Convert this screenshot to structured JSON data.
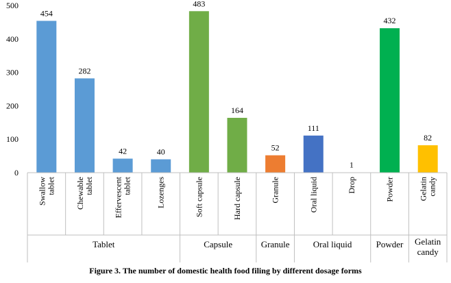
{
  "chart_data": {
    "type": "bar",
    "title": "Figure 3. The number of domestic health food filing by different dosage forms",
    "ylim": [
      0,
      500
    ],
    "yticks": [
      0,
      100,
      200,
      300,
      400,
      500
    ],
    "grid": false,
    "categories": [
      {
        "label": "Swallow tablet",
        "lines": [
          "Swallow",
          "tablet"
        ],
        "value": 454,
        "group": "Tablet",
        "color": "#5b9bd5"
      },
      {
        "label": "Chewable tablet",
        "lines": [
          "Chewable",
          "tablet"
        ],
        "value": 282,
        "group": "Tablet",
        "color": "#5b9bd5"
      },
      {
        "label": "Effervescent tablet",
        "lines": [
          "Effervescent",
          "tablet"
        ],
        "value": 42,
        "group": "Tablet",
        "color": "#5b9bd5"
      },
      {
        "label": "Lozenges",
        "lines": [
          "Lozenges"
        ],
        "value": 40,
        "group": "Tablet",
        "color": "#5b9bd5"
      },
      {
        "label": "Soft capsule",
        "lines": [
          "Soft capsule"
        ],
        "value": 483,
        "group": "Capsule",
        "color": "#70ad47"
      },
      {
        "label": "Hard capsule",
        "lines": [
          "Hard capsule"
        ],
        "value": 164,
        "group": "Capsule",
        "color": "#70ad47"
      },
      {
        "label": "Granule",
        "lines": [
          "Granule"
        ],
        "value": 52,
        "group": "Granule",
        "color": "#ed7d31"
      },
      {
        "label": "Oral liquid",
        "lines": [
          "Oral liquid"
        ],
        "value": 111,
        "group": "Oral liquid",
        "color": "#4472c4"
      },
      {
        "label": "Drop",
        "lines": [
          "Drop"
        ],
        "value": 1,
        "group": "Oral liquid",
        "color": "#4472c4"
      },
      {
        "label": "Powder",
        "lines": [
          "Powder"
        ],
        "value": 432,
        "group": "Powder",
        "color": "#00b050"
      },
      {
        "label": "Gelatin candy",
        "lines": [
          "Gelatin",
          "candy"
        ],
        "value": 82,
        "group": "Gelatin candy",
        "color": "#ffc000"
      }
    ],
    "groups": [
      {
        "label": "Tablet",
        "lines": [
          "Tablet"
        ]
      },
      {
        "label": "Capsule",
        "lines": [
          "Capsule"
        ]
      },
      {
        "label": "Granule",
        "lines": [
          "Granule"
        ]
      },
      {
        "label": "Oral liquid",
        "lines": [
          "Oral liquid"
        ]
      },
      {
        "label": "Powder",
        "lines": [
          "Powder"
        ]
      },
      {
        "label": "Gelatin candy",
        "lines": [
          "Gelatin",
          "candy"
        ]
      }
    ]
  }
}
